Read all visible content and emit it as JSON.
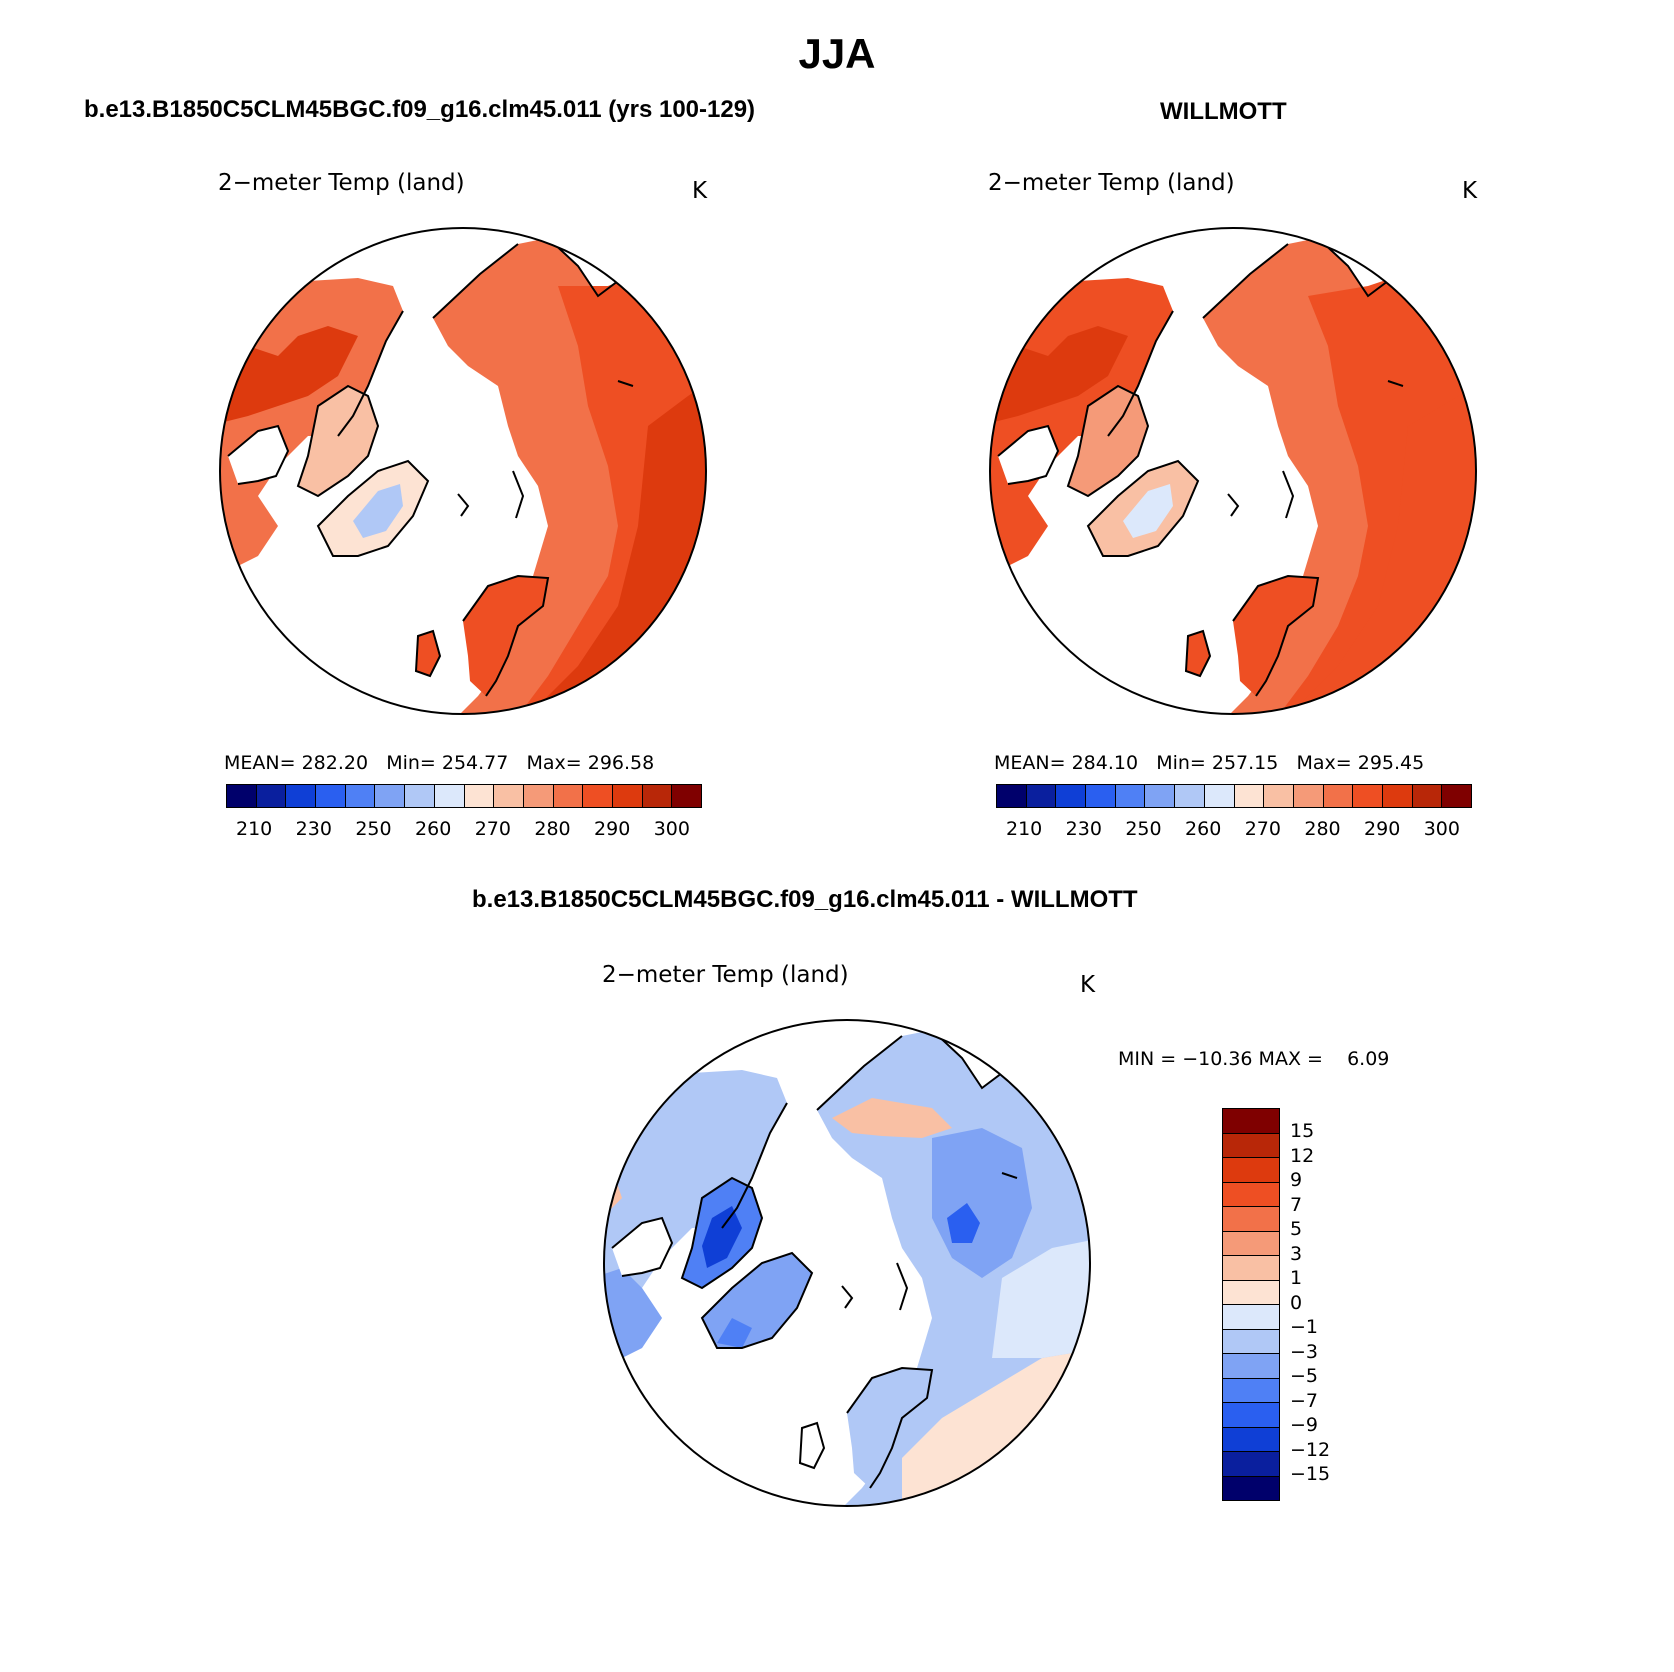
{
  "figure": {
    "title": "JJA",
    "panel1_title": "b.e13.B1850C5CLM45BGC.f09_g16.clm45.011 (yrs 100-129)",
    "panel2_title": "WILLMOTT",
    "panel3_title": "b.e13.B1850C5CLM45BGC.f09_g16.clm45.011 - WILLMOTT"
  },
  "panels": [
    {
      "var_label": "2−meter Temp (land)",
      "units": "K",
      "stats": {
        "mean_label": "MEAN=",
        "mean": "282.20",
        "min_label": "Min=",
        "min": "254.77",
        "max_label": "Max=",
        "max": "296.58"
      }
    },
    {
      "var_label": "2−meter Temp (land)",
      "units": "K",
      "stats": {
        "mean_label": "MEAN=",
        "mean": "284.10",
        "min_label": "Min=",
        "min": "257.15",
        "max_label": "Max=",
        "max": "295.45"
      }
    },
    {
      "var_label": "2−meter Temp (land)",
      "units": "K",
      "stats_line": "MIN = −10.36 MAX =    6.09"
    }
  ],
  "abs_colorbar": {
    "tick_labels": [
      "210",
      "230",
      "250",
      "260",
      "270",
      "280",
      "290",
      "300"
    ],
    "colors": [
      "#00006b",
      "#0a1f9e",
      "#0f3fd6",
      "#2a5ff0",
      "#4f80f5",
      "#7fa3f4",
      "#b0c8f6",
      "#dce8fb",
      "#fde3d3",
      "#f9c0a4",
      "#f59a78",
      "#f27149",
      "#ee4f23",
      "#dd3a0e",
      "#b82708",
      "#7f0000"
    ]
  },
  "diff_colorbar": {
    "tick_labels": [
      "15",
      "12",
      "9",
      "7",
      "5",
      "3",
      "1",
      "0",
      "−1",
      "−3",
      "−5",
      "−7",
      "−9",
      "−12",
      "−15"
    ],
    "colors_top_to_bottom": [
      "#7f0000",
      "#b82708",
      "#dd3a0e",
      "#ee4f23",
      "#f27149",
      "#f59a78",
      "#f9c0a4",
      "#fde3d3",
      "#dce8fb",
      "#b0c8f6",
      "#7fa3f4",
      "#4f80f5",
      "#2a5ff0",
      "#0f3fd6",
      "#0a1f9e",
      "#00006b"
    ]
  },
  "map_colors": {
    "warm_dark": "#dd3a0e",
    "warm_mid": "#ee4f23",
    "warm_light": "#f27149",
    "cool_light": "#dce8fb",
    "cool_mid": "#b0c8f6",
    "diff_blue": "#7fa3f4",
    "diff_deep_blue": "#0f3fd6",
    "diff_pale_red": "#f9c0a4"
  }
}
